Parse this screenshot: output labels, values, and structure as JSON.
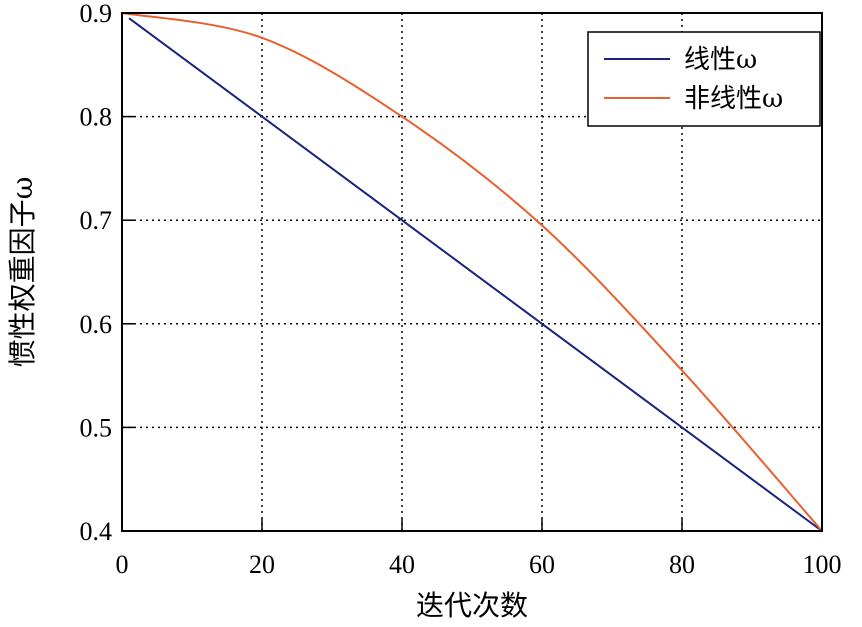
{
  "chart_data": {
    "type": "line",
    "title": "",
    "xlabel": "迭代次数",
    "ylabel": "惯性权重因子ω",
    "xlim": [
      0,
      100
    ],
    "ylim": [
      0.4,
      0.9
    ],
    "xticks": [
      "0",
      "20",
      "40",
      "60",
      "80",
      "100"
    ],
    "yticks": [
      "0.4",
      "0.5",
      "0.6",
      "0.7",
      "0.8",
      "0.9"
    ],
    "grid": true,
    "legend_position": "upper right",
    "x": [
      0,
      20,
      40,
      60,
      80,
      100
    ],
    "series": [
      {
        "name": "线性ω",
        "color": "#1a237e",
        "values": [
          0.9,
          0.8,
          0.7,
          0.6,
          0.5,
          0.4
        ]
      },
      {
        "name": "非线性ω",
        "color": "#e8602c",
        "values": [
          0.9,
          0.876,
          0.8,
          0.695,
          0.555,
          0.4
        ]
      }
    ]
  },
  "legend": {
    "items": [
      {
        "label": "线性ω",
        "color": "#1a237e"
      },
      {
        "label": "非线性ω",
        "color": "#e8602c"
      }
    ]
  }
}
